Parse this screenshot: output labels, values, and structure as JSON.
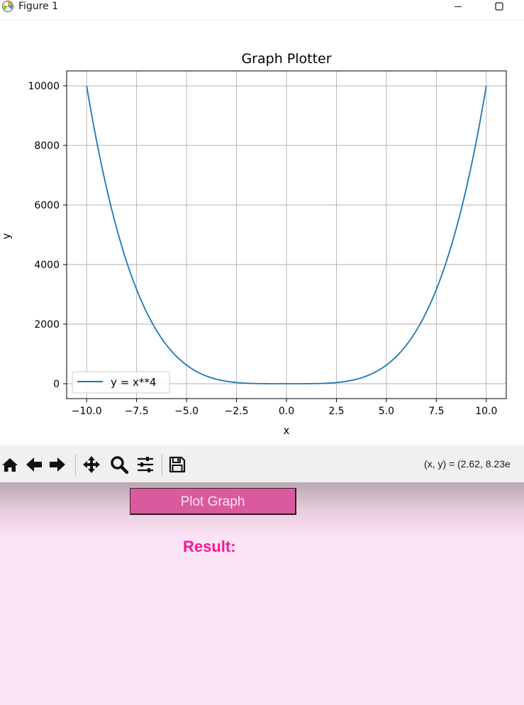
{
  "window": {
    "title": "Figure 1"
  },
  "chart_data": {
    "type": "line",
    "title": "Graph Plotter",
    "xlabel": "x",
    "ylabel": "y",
    "xlim": [
      -11.0,
      11.0
    ],
    "ylim": [
      -500,
      10500
    ],
    "xticks": [
      -10.0,
      -7.5,
      -5.0,
      -2.5,
      0.0,
      2.5,
      5.0,
      7.5,
      10.0
    ],
    "xtick_labels": [
      "−10.0",
      "−7.5",
      "−5.0",
      "−2.5",
      "0.0",
      "2.5",
      "5.0",
      "7.5",
      "10.0"
    ],
    "yticks": [
      0,
      2000,
      4000,
      6000,
      8000,
      10000
    ],
    "ytick_labels": [
      "0",
      "2000",
      "4000",
      "6000",
      "8000",
      "10000"
    ],
    "grid": true,
    "legend_position": "lower-left",
    "series": [
      {
        "name": "y = x**4",
        "color": "#1f77b4",
        "x_range": [
          -10,
          10
        ]
      }
    ]
  },
  "toolbar": {
    "buttons": [
      "home-icon",
      "back-icon",
      "forward-icon",
      "pan-icon",
      "zoom-icon",
      "configure-subplots-icon",
      "save-icon"
    ],
    "coords_text": "(x, y) = (2.62, 8.23e"
  },
  "controls": {
    "plot_button_label": "Plot Graph",
    "result_label": "Result:"
  },
  "colors": {
    "line": "#1f77b4",
    "button_bg": "#da5a9e",
    "result_text": "#f2189a",
    "panel_bg": "#fce3f6"
  }
}
